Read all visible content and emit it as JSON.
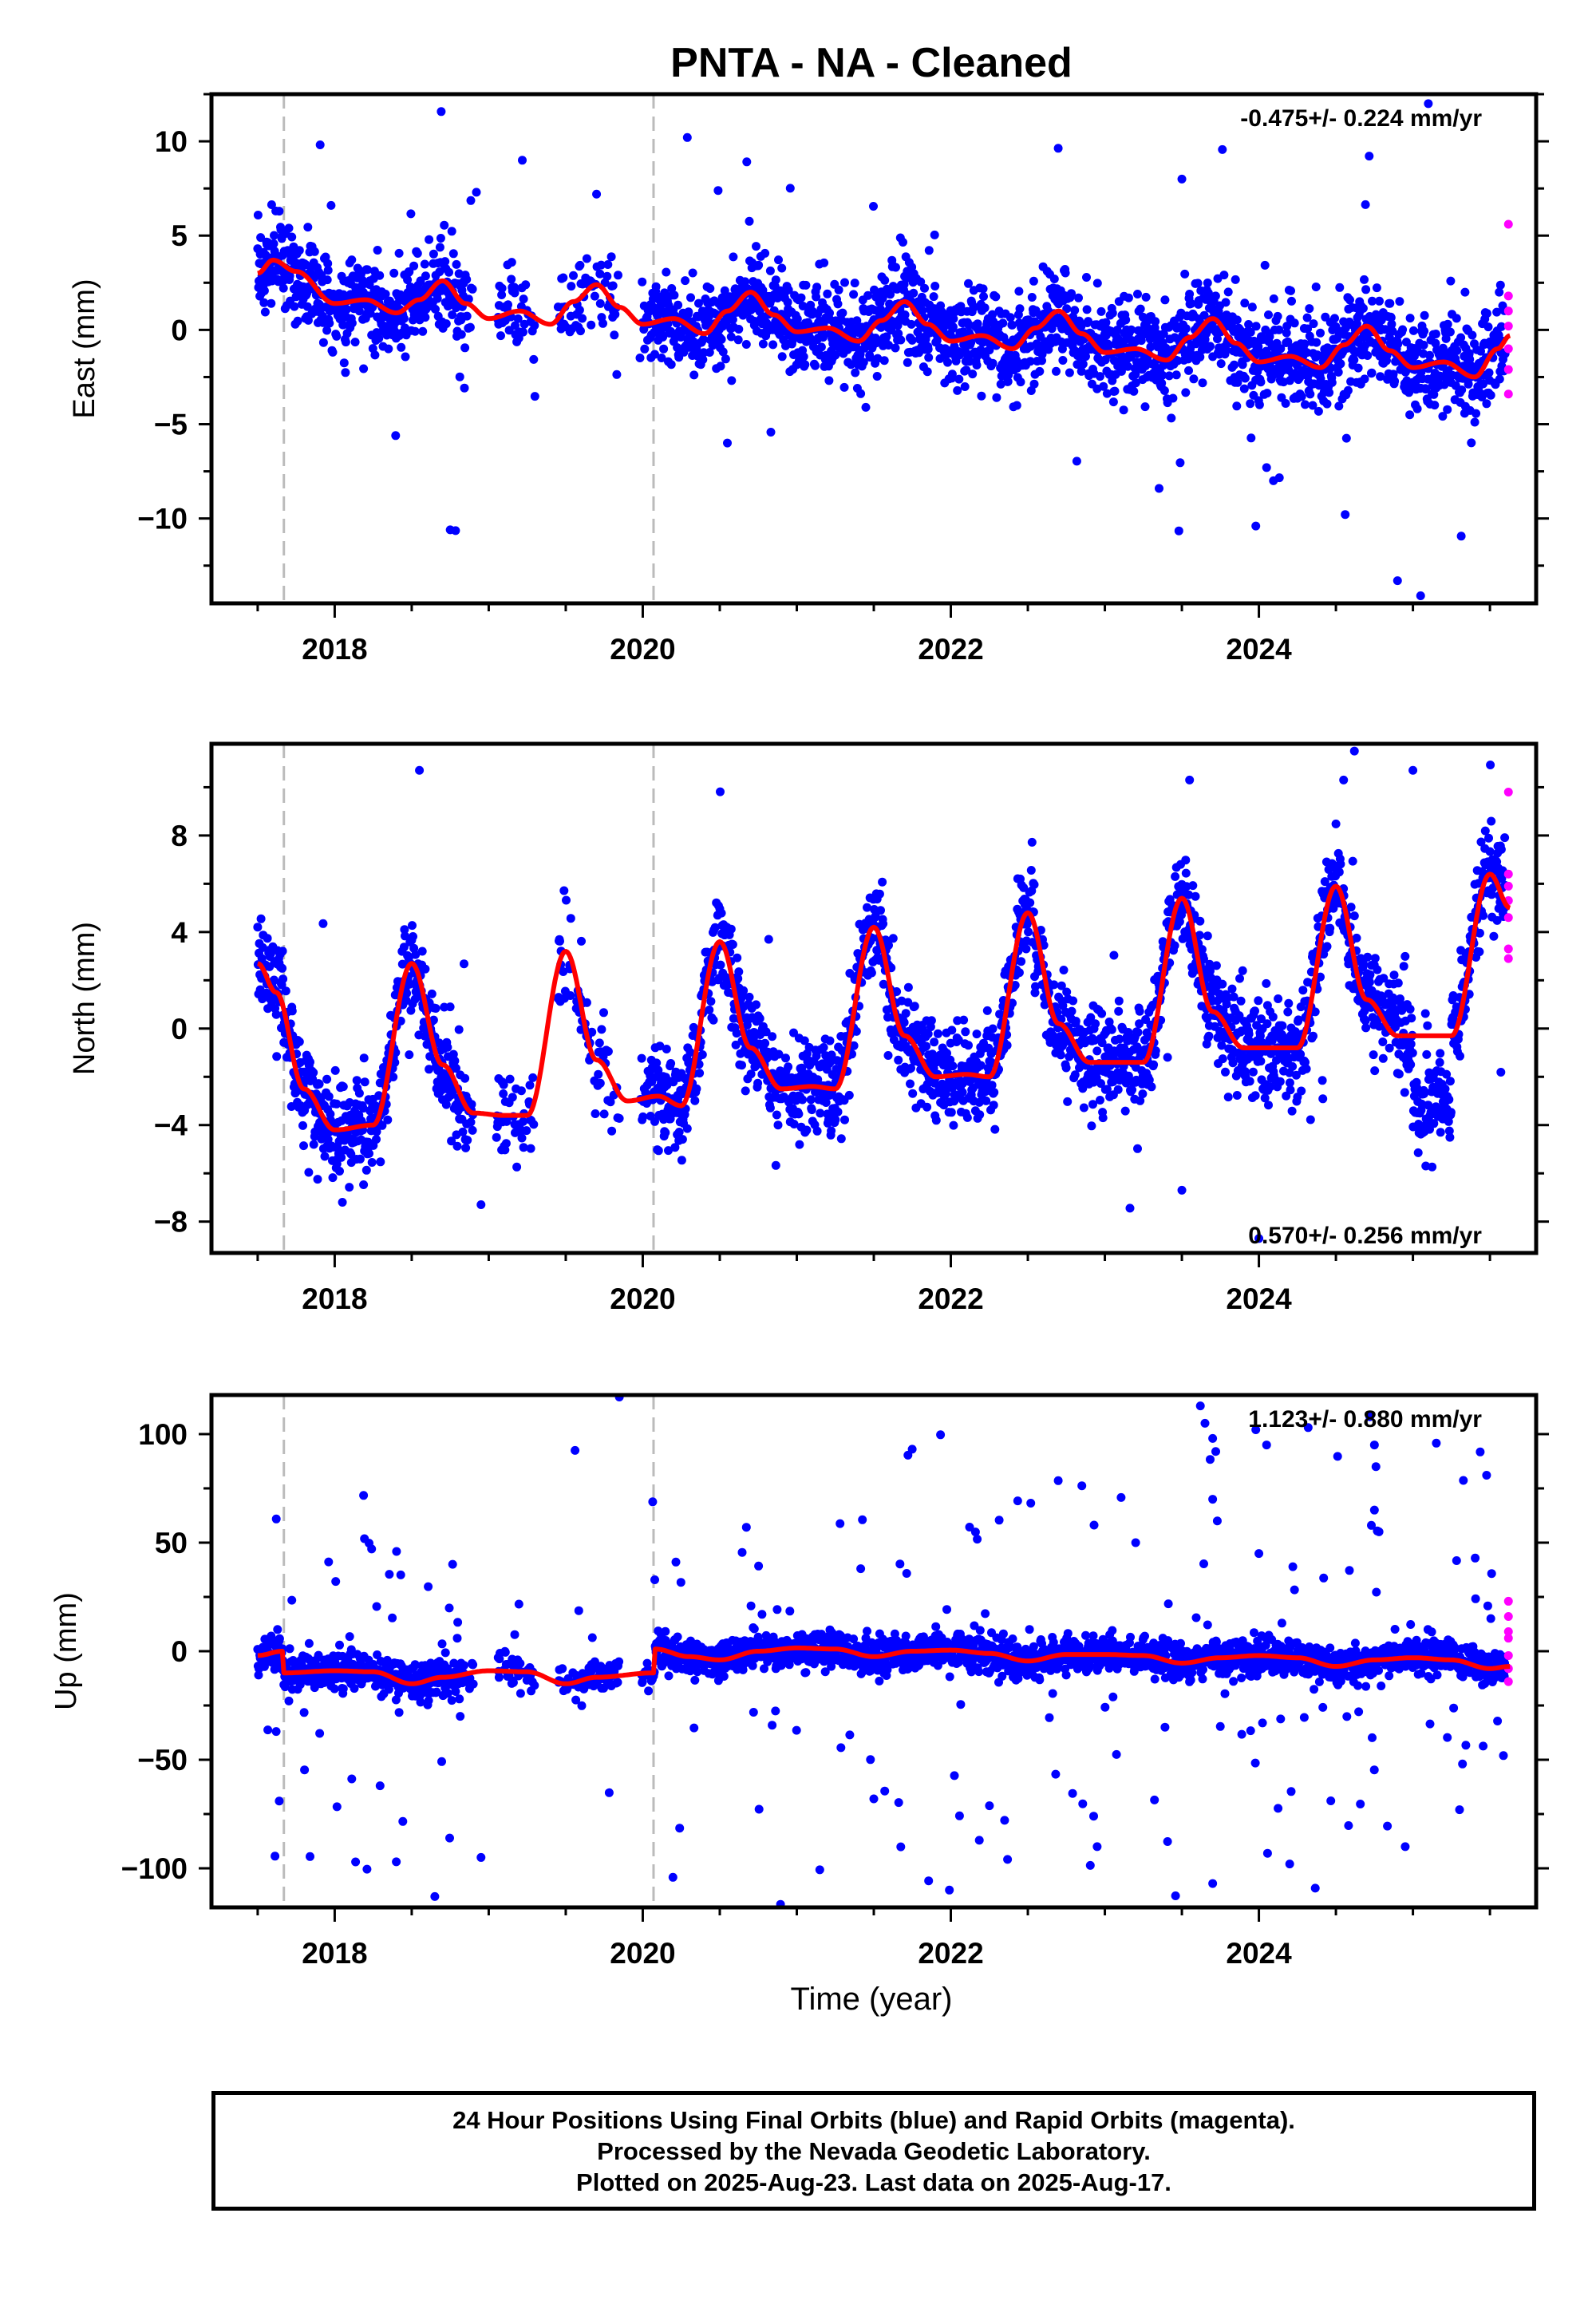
{
  "title": "PNTA  - NA - Cleaned",
  "xlabel": "Time (year)",
  "footer": {
    "line1": "24 Hour Positions Using Final Orbits (blue) and Rapid Orbits (magenta).",
    "line2": "Processed by the Nevada Geodetic Laboratory.",
    "line3": "Plotted on 2025-Aug-23. Last data on 2025-Aug-17."
  },
  "colors": {
    "final": "#0000ff",
    "rapid": "#ff00ff",
    "model": "#ff0000",
    "equipment_change": "#bbbbbb"
  },
  "chart_data": [
    {
      "type": "scatter",
      "component": "east",
      "ylabel": "East (mm)",
      "rate_label": "-0.475+/- 0.224 mm/yr",
      "rate_position": "top-right",
      "xlim": [
        2017.2,
        2025.8
      ],
      "ylim": [
        -14.5,
        12.5
      ],
      "x_ticks": [
        2018,
        2020,
        2022,
        2024
      ],
      "y_ticks": [
        10,
        5,
        0,
        -5,
        -10
      ],
      "y_tick_labels": [
        "10",
        "5",
        "0",
        "−5",
        "−10"
      ],
      "equipment_changes": [
        2017.67,
        2020.07
      ],
      "rate": -0.475,
      "series": [
        {
          "name": "Final Orbits (blue)",
          "style": "dots",
          "model": {
            "t0": 2017.5,
            "segments": [
              [
                2017.5,
                2025.63,
                2.2
              ]
            ],
            "trend": -0.475,
            "annual_amp": 1.2,
            "annual_phase": 0.55,
            "semi_amp": 0.45,
            "semi_phase": 1.2,
            "noise": 1.2,
            "outlier_rate": 0.03,
            "outlier_scale": 6
          },
          "gaps": [
            [
              2018.9,
              2019.05
            ],
            [
              2019.3,
              2019.45
            ],
            [
              2019.85,
              2019.98
            ]
          ],
          "outliers": [
            [
              2018.75,
              -10.6
            ],
            [
              2018.92,
              7.3
            ],
            [
              2019.7,
              7.2
            ],
            [
              2023.5,
              8.0
            ],
            [
              2023.98,
              -10.4
            ],
            [
              2024.05,
              -7.3
            ],
            [
              2024.9,
              -13.3
            ],
            [
              2025.05,
              -14.1
            ],
            [
              2025.1,
              12.0
            ]
          ]
        },
        {
          "name": "Rapid Orbits (magenta)",
          "style": "dots",
          "points": [
            [
              2025.62,
              5.6
            ],
            [
              2025.62,
              1.8
            ],
            [
              2025.62,
              1.0
            ],
            [
              2025.62,
              0.2
            ],
            [
              2025.62,
              -1.0
            ],
            [
              2025.62,
              -2.1
            ],
            [
              2025.62,
              -3.4
            ]
          ]
        },
        {
          "name": "model",
          "style": "line",
          "knots": [
            [
              2017.5,
              3.0
            ],
            [
              2017.6,
              3.7
            ],
            [
              2017.75,
              3.1
            ],
            [
              2018.0,
              1.4
            ],
            [
              2018.2,
              1.6
            ],
            [
              2018.4,
              0.9
            ],
            [
              2018.55,
              1.6
            ],
            [
              2018.7,
              2.6
            ],
            [
              2018.85,
              1.4
            ],
            [
              2019.0,
              0.6
            ],
            [
              2019.2,
              1.0
            ],
            [
              2019.4,
              0.3
            ],
            [
              2019.55,
              1.5
            ],
            [
              2019.7,
              2.4
            ],
            [
              2019.85,
              1.2
            ],
            [
              2020.0,
              0.3
            ],
            [
              2020.2,
              0.6
            ],
            [
              2020.4,
              -0.2
            ],
            [
              2020.55,
              1.0
            ],
            [
              2020.7,
              2.0
            ],
            [
              2020.85,
              0.8
            ],
            [
              2021.0,
              -0.1
            ],
            [
              2021.2,
              0.1
            ],
            [
              2021.4,
              -0.6
            ],
            [
              2021.55,
              0.5
            ],
            [
              2021.7,
              1.5
            ],
            [
              2021.85,
              0.3
            ],
            [
              2022.0,
              -0.6
            ],
            [
              2022.2,
              -0.3
            ],
            [
              2022.4,
              -1.0
            ],
            [
              2022.55,
              0.1
            ],
            [
              2022.7,
              1.0
            ],
            [
              2022.85,
              -0.2
            ],
            [
              2023.0,
              -1.2
            ],
            [
              2023.2,
              -1.0
            ],
            [
              2023.4,
              -1.6
            ],
            [
              2023.55,
              -0.4
            ],
            [
              2023.7,
              0.6
            ],
            [
              2023.85,
              -0.7
            ],
            [
              2024.0,
              -1.7
            ],
            [
              2024.2,
              -1.4
            ],
            [
              2024.4,
              -2.0
            ],
            [
              2024.55,
              -0.8
            ],
            [
              2024.7,
              0.2
            ],
            [
              2024.85,
              -1.1
            ],
            [
              2025.0,
              -2.0
            ],
            [
              2025.2,
              -1.7
            ],
            [
              2025.4,
              -2.5
            ],
            [
              2025.55,
              -1.0
            ],
            [
              2025.63,
              -0.3
            ]
          ]
        }
      ]
    },
    {
      "type": "scatter",
      "component": "north",
      "ylabel": "North (mm)",
      "rate_label": "0.570+/- 0.256 mm/yr",
      "rate_position": "bottom-right",
      "xlim": [
        2017.2,
        2025.8
      ],
      "ylim": [
        -9.3,
        11.8
      ],
      "x_ticks": [
        2018,
        2020,
        2022,
        2024
      ],
      "y_ticks": [
        8,
        4,
        0,
        -4,
        -8
      ],
      "y_tick_labels": [
        "8",
        "4",
        "0",
        "−4",
        "−8"
      ],
      "equipment_changes": [
        2017.67,
        2020.07
      ],
      "rate": 0.57,
      "series": [
        {
          "name": "Final Orbits (blue)",
          "style": "dots",
          "model": {
            "noise": 1.0,
            "outlier_rate": 0.02,
            "outlier_scale": 4
          },
          "gaps": [
            [
              2018.9,
              2019.05
            ],
            [
              2019.3,
              2019.45
            ],
            [
              2019.85,
              2019.98
            ]
          ],
          "extra_cluster": [
            2025.0,
            2025.25,
            -3.2
          ],
          "outliers": [
            [
              2018.55,
              10.7
            ],
            [
              2018.05,
              -7.2
            ],
            [
              2018.95,
              -7.3
            ],
            [
              2023.5,
              -6.7
            ],
            [
              2024.0,
              -8.7
            ],
            [
              2025.0,
              10.7
            ],
            [
              2024.62,
              11.5
            ],
            [
              2023.55,
              10.3
            ],
            [
              2024.55,
              10.3
            ]
          ]
        },
        {
          "name": "Rapid Orbits (magenta)",
          "style": "dots",
          "points": [
            [
              2025.62,
              9.8
            ],
            [
              2025.62,
              6.4
            ],
            [
              2025.62,
              5.9
            ],
            [
              2025.62,
              5.3
            ],
            [
              2025.62,
              4.6
            ],
            [
              2025.62,
              3.3
            ],
            [
              2025.62,
              2.9
            ]
          ]
        },
        {
          "name": "model",
          "style": "line",
          "knots": [
            [
              2017.5,
              2.7
            ],
            [
              2017.62,
              1.5
            ],
            [
              2017.8,
              -2.5
            ],
            [
              2018.0,
              -4.2
            ],
            [
              2018.25,
              -4.0
            ],
            [
              2018.5,
              2.7
            ],
            [
              2018.7,
              -1.5
            ],
            [
              2018.9,
              -3.5
            ],
            [
              2019.1,
              -3.6
            ],
            [
              2019.25,
              -3.6
            ],
            [
              2019.5,
              3.2
            ],
            [
              2019.7,
              -1.3
            ],
            [
              2019.9,
              -3.0
            ],
            [
              2020.1,
              -2.8
            ],
            [
              2020.25,
              -3.2
            ],
            [
              2020.5,
              3.6
            ],
            [
              2020.7,
              -0.8
            ],
            [
              2020.9,
              -2.5
            ],
            [
              2021.1,
              -2.4
            ],
            [
              2021.25,
              -2.5
            ],
            [
              2021.5,
              4.2
            ],
            [
              2021.7,
              -0.3
            ],
            [
              2021.9,
              -2.0
            ],
            [
              2022.1,
              -1.9
            ],
            [
              2022.25,
              -2.0
            ],
            [
              2022.5,
              4.8
            ],
            [
              2022.7,
              0.2
            ],
            [
              2022.9,
              -1.4
            ],
            [
              2023.1,
              -1.4
            ],
            [
              2023.25,
              -1.4
            ],
            [
              2023.5,
              5.4
            ],
            [
              2023.7,
              0.7
            ],
            [
              2023.9,
              -0.8
            ],
            [
              2024.1,
              -0.8
            ],
            [
              2024.25,
              -0.8
            ],
            [
              2024.5,
              5.9
            ],
            [
              2024.7,
              1.2
            ],
            [
              2024.9,
              -0.3
            ],
            [
              2025.1,
              -0.3
            ],
            [
              2025.25,
              -0.3
            ],
            [
              2025.5,
              6.4
            ],
            [
              2025.63,
              5.0
            ]
          ]
        }
      ]
    },
    {
      "type": "scatter",
      "component": "up",
      "ylabel": "Up (mm)",
      "rate_label": "1.123+/- 0.880 mm/yr",
      "rate_position": "top-right",
      "xlim": [
        2017.2,
        2025.8
      ],
      "ylim": [
        -118,
        118
      ],
      "x_ticks": [
        2018,
        2020,
        2022,
        2024
      ],
      "y_ticks": [
        100,
        50,
        0,
        -50,
        -100
      ],
      "y_tick_labels": [
        "100",
        "50",
        "0",
        "−50",
        "−100"
      ],
      "equipment_changes": [
        2017.67,
        2020.07
      ],
      "rate": 1.123,
      "series": [
        {
          "name": "Final Orbits (blue)",
          "style": "dots",
          "model": {
            "noise": 4,
            "outlier_rate": 0.08,
            "outlier_scale": 55
          },
          "gaps": [
            [
              2018.9,
              2019.05
            ],
            [
              2019.3,
              2019.45
            ],
            [
              2019.85,
              2019.98
            ]
          ],
          "outliers": [
            [
              2023.62,
              113
            ],
            [
              2023.65,
              105
            ],
            [
              2023.7,
              98
            ],
            [
              2023.72,
              92
            ],
            [
              2023.98,
              102
            ],
            [
              2024.05,
              95
            ],
            [
              2024.32,
              103
            ],
            [
              2024.72,
              108
            ],
            [
              2024.75,
              95
            ],
            [
              2024.76,
              85
            ],
            [
              2024.75,
              65
            ],
            [
              2024.78,
              55
            ],
            [
              2023.2,
              50
            ],
            [
              2023.7,
              70
            ],
            [
              2023.73,
              60
            ],
            [
              2024.0,
              45
            ],
            [
              2018.65,
              -113
            ],
            [
              2018.95,
              -95
            ],
            [
              2018.4,
              -97
            ],
            [
              2023.7,
              -107
            ],
            [
              2024.2,
              -98
            ],
            [
              2017.62,
              -37
            ],
            [
              2017.64,
              -69
            ],
            [
              2022.95,
              -90
            ],
            [
              2021.5,
              -68
            ],
            [
              2024.95,
              -90
            ]
          ]
        },
        {
          "name": "Rapid Orbits (magenta)",
          "style": "dots",
          "points": [
            [
              2025.62,
              23
            ],
            [
              2025.62,
              16
            ],
            [
              2025.62,
              9
            ],
            [
              2025.62,
              6
            ],
            [
              2025.62,
              -2
            ],
            [
              2025.62,
              -8
            ],
            [
              2025.62,
              -14
            ]
          ]
        },
        {
          "name": "model",
          "style": "line",
          "knots": [
            [
              2017.5,
              -2.0
            ],
            [
              2017.66,
              0.0
            ],
            [
              2017.67,
              -10.0
            ],
            [
              2018.0,
              -9.0
            ],
            [
              2018.25,
              -9.5
            ],
            [
              2018.5,
              -15.0
            ],
            [
              2018.7,
              -12.0
            ],
            [
              2019.0,
              -9.0
            ],
            [
              2019.25,
              -9.5
            ],
            [
              2019.5,
              -15.0
            ],
            [
              2019.7,
              -12.0
            ],
            [
              2020.07,
              -10.0
            ],
            [
              2020.08,
              1.0
            ],
            [
              2020.3,
              -2.5
            ],
            [
              2020.5,
              -4.0
            ],
            [
              2020.75,
              0.0
            ],
            [
              2021.0,
              1.5
            ],
            [
              2021.25,
              1.0
            ],
            [
              2021.5,
              -2.5
            ],
            [
              2021.75,
              0.0
            ],
            [
              2022.0,
              0.5
            ],
            [
              2022.25,
              -1.0
            ],
            [
              2022.5,
              -4.5
            ],
            [
              2022.75,
              -1.5
            ],
            [
              2023.0,
              -1.5
            ],
            [
              2023.25,
              -2.0
            ],
            [
              2023.5,
              -5.5
            ],
            [
              2023.75,
              -3.0
            ],
            [
              2024.0,
              -2.0
            ],
            [
              2024.25,
              -3.0
            ],
            [
              2024.5,
              -7.0
            ],
            [
              2024.75,
              -4.0
            ],
            [
              2025.0,
              -3.0
            ],
            [
              2025.25,
              -4.0
            ],
            [
              2025.5,
              -8.0
            ],
            [
              2025.63,
              -7.0
            ]
          ]
        }
      ]
    }
  ]
}
